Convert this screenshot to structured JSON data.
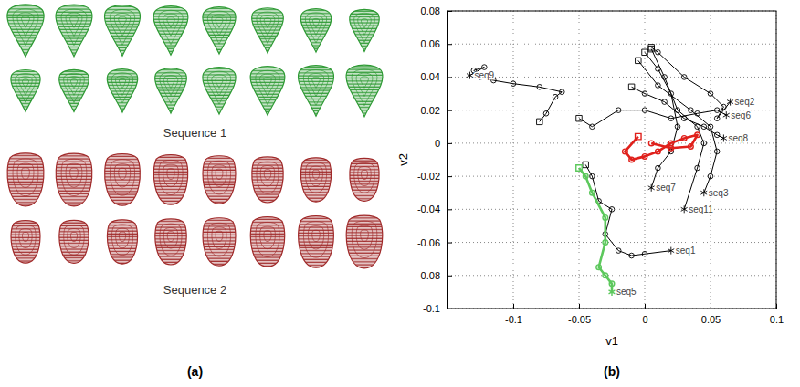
{
  "figure": {
    "panel_a": {
      "label": "(a)",
      "sequences": [
        {
          "name": "Sequence 1",
          "color": "#2e9a34"
        },
        {
          "name": "Sequence 2",
          "color": "#a02a2a"
        }
      ]
    },
    "panel_b": {
      "label": "(b)"
    }
  },
  "chart_data": {
    "type": "line",
    "xlabel": "v1",
    "ylabel": "v2",
    "xlim": [
      -0.15,
      0.1
    ],
    "ylim": [
      -0.1,
      0.08
    ],
    "xticks": [
      -0.1,
      -0.05,
      0,
      0.05,
      0.1
    ],
    "yticks": [
      -0.1,
      -0.08,
      -0.06,
      -0.04,
      -0.02,
      0,
      0.02,
      0.04,
      0.06,
      0.08
    ],
    "grid": true,
    "marker": "circle",
    "line_style": "solid",
    "series": [
      {
        "name": "seq1",
        "color": "#000000",
        "x": [
          -0.045,
          -0.04,
          -0.035,
          -0.025,
          -0.03,
          -0.02,
          -0.01,
          0.0,
          0.02
        ],
        "values": [
          -0.013,
          -0.02,
          -0.035,
          -0.04,
          -0.055,
          -0.065,
          -0.068,
          -0.067,
          -0.065
        ]
      },
      {
        "name": "seq2",
        "color": "#000000",
        "x": [
          0.005,
          0.01,
          0.03,
          0.05,
          0.06,
          0.055,
          0.065
        ],
        "values": [
          0.058,
          0.055,
          0.04,
          0.03,
          0.022,
          0.015,
          0.025
        ]
      },
      {
        "name": "seq3",
        "color": "#000000",
        "x": [
          -0.005,
          0.01,
          0.035,
          0.05,
          0.055,
          0.05,
          0.045
        ],
        "values": [
          0.05,
          0.035,
          0.02,
          0.01,
          -0.005,
          -0.02,
          -0.03
        ]
      },
      {
        "name": "seq6",
        "color": "#000000",
        "x": [
          -0.05,
          -0.04,
          -0.02,
          0.0,
          0.02,
          0.04,
          0.055,
          0.062
        ],
        "values": [
          0.015,
          0.01,
          0.02,
          0.02,
          0.015,
          0.018,
          0.02,
          0.017
        ]
      },
      {
        "name": "seq7",
        "color": "#000000",
        "x": [
          0.0,
          0.01,
          0.02,
          0.025,
          0.02,
          0.01,
          0.005
        ],
        "values": [
          0.055,
          0.045,
          0.03,
          0.01,
          -0.005,
          -0.015,
          -0.027
        ]
      },
      {
        "name": "seq8",
        "color": "#000000",
        "x": [
          -0.01,
          0.0,
          0.015,
          0.03,
          0.045,
          0.055,
          0.06
        ],
        "values": [
          0.034,
          0.03,
          0.025,
          0.015,
          0.01,
          0.005,
          0.003
        ]
      },
      {
        "name": "seq9",
        "color": "#000000",
        "x": [
          -0.08,
          -0.075,
          -0.068,
          -0.063,
          -0.08,
          -0.1,
          -0.115,
          -0.125,
          -0.13,
          -0.122,
          -0.133
        ],
        "values": [
          0.013,
          0.018,
          0.028,
          0.031,
          0.034,
          0.036,
          0.038,
          0.04,
          0.044,
          0.046,
          0.041
        ]
      },
      {
        "name": "seq11",
        "color": "#000000",
        "x": [
          0.005,
          0.015,
          0.025,
          0.04,
          0.045,
          0.04,
          0.03
        ],
        "values": [
          0.057,
          0.04,
          0.02,
          0.01,
          0.0,
          -0.015,
          -0.04
        ]
      },
      {
        "color": "#e0201b",
        "x": [
          -0.005,
          -0.015,
          -0.01,
          0.0,
          0.01,
          0.02,
          0.03,
          0.04,
          0.035,
          0.02,
          0.005
        ],
        "values": [
          0.004,
          -0.005,
          -0.01,
          -0.008,
          -0.005,
          0.0,
          0.003,
          0.005,
          -0.002,
          -0.003,
          0.0
        ]
      },
      {
        "name": "seq5",
        "color": "#5cc85c",
        "x": [
          -0.05,
          -0.045,
          -0.04,
          -0.03,
          -0.03,
          -0.035,
          -0.03,
          -0.025,
          -0.025
        ],
        "values": [
          -0.015,
          -0.02,
          -0.03,
          -0.045,
          -0.06,
          -0.075,
          -0.08,
          -0.085,
          -0.09
        ]
      }
    ]
  }
}
